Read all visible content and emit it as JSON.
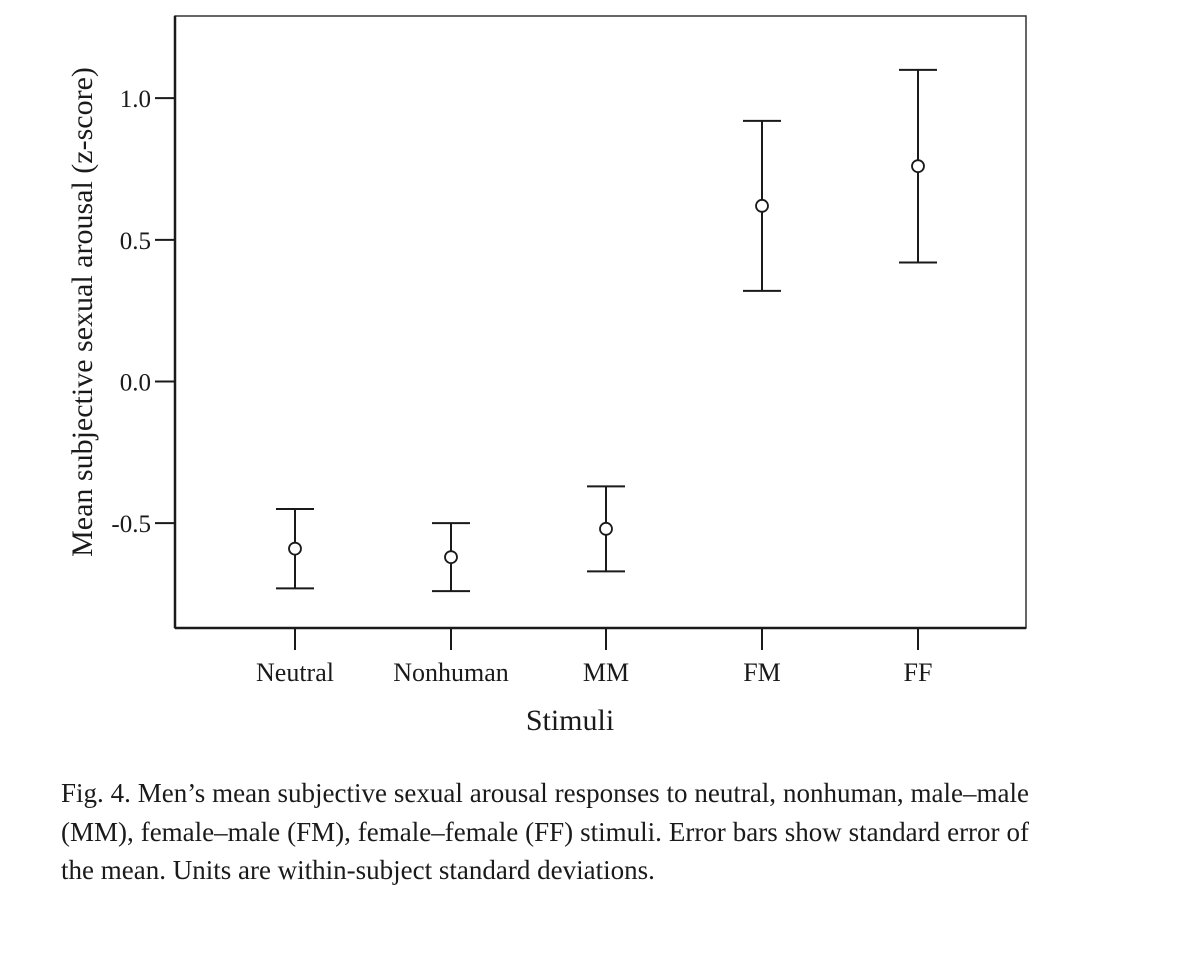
{
  "chart_data": {
    "type": "scatter",
    "subtype": "mean-with-error-bars",
    "categories": [
      "Neutral",
      "Nonhuman",
      "MM",
      "FM",
      "FF"
    ],
    "series": [
      {
        "values": [
          -0.59,
          -0.62,
          -0.52,
          0.62,
          0.76
        ],
        "error_lower": [
          -0.73,
          -0.74,
          -0.67,
          0.32,
          0.42
        ],
        "error_upper": [
          -0.45,
          -0.5,
          -0.37,
          0.92,
          1.1
        ]
      }
    ],
    "xlabel": "Stimuli",
    "ylabel": "Mean subjective sexual arousal (z-score)",
    "ylim": [
      -0.87,
      1.29
    ],
    "yticks": [
      1.0,
      0.5,
      0.0,
      -0.5
    ],
    "ytick_labels": [
      "1.0",
      "0.5",
      "0.0",
      "-0.5"
    ],
    "grid": false,
    "legend": "none",
    "marker": "open-circle"
  },
  "caption": "Fig. 4.  Men’s mean subjective sexual arousal responses to neutral, nonhuman, male–male (MM), female–male (FM), female–female (FF) stimuli. Error bars show standard error of the mean. Units are within-subject standard deviations."
}
